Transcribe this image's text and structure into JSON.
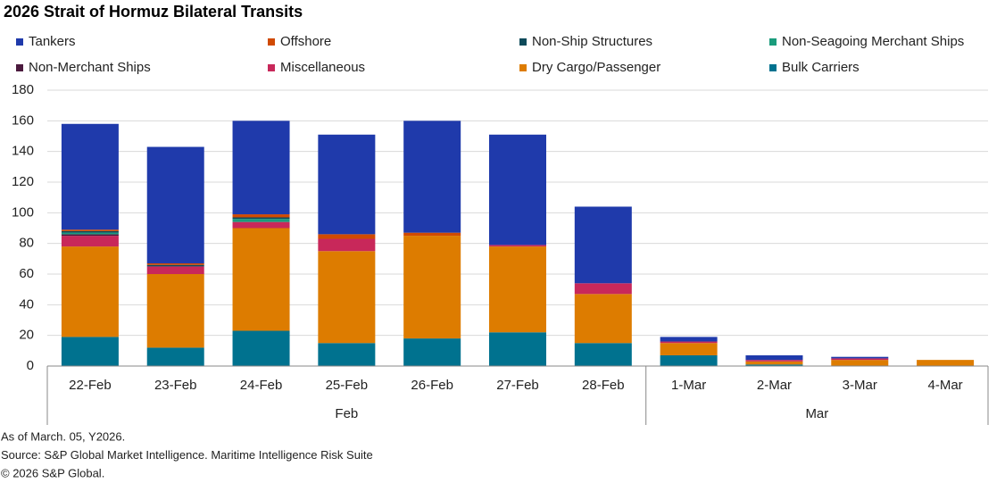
{
  "chart_data": {
    "type": "stacked-bar",
    "title": "2026 Strait of Hormuz Bilateral Transits",
    "categories": [
      "22-Feb",
      "23-Feb",
      "24-Feb",
      "25-Feb",
      "26-Feb",
      "27-Feb",
      "28-Feb",
      "1-Mar",
      "2-Mar",
      "3-Mar",
      "4-Mar"
    ],
    "groups": [
      {
        "label": "Feb",
        "count": 7
      },
      {
        "label": "Mar",
        "count": 4
      }
    ],
    "series": [
      {
        "name": "Tankers",
        "color": "#1f3aab",
        "values": [
          69,
          76,
          61,
          65,
          73,
          72,
          50,
          3,
          3,
          1,
          0
        ]
      },
      {
        "name": "Offshore",
        "color": "#d04a02",
        "values": [
          1,
          1,
          2,
          3,
          2,
          0,
          0,
          0,
          0,
          0,
          0
        ]
      },
      {
        "name": "Non-Ship Structures",
        "color": "#0d4a5a",
        "values": [
          1,
          1,
          1,
          0,
          0,
          0,
          0,
          0,
          0,
          0,
          0
        ]
      },
      {
        "name": "Non-Seagoing Merchant Ships",
        "color": "#1a9c7c",
        "values": [
          1,
          0,
          2,
          0,
          0,
          0,
          0,
          0,
          0,
          0,
          0
        ]
      },
      {
        "name": "Non-Merchant Ships",
        "color": "#4b1a3e",
        "values": [
          1,
          0,
          0,
          0,
          0,
          0,
          0,
          0,
          0,
          0,
          0
        ]
      },
      {
        "name": "Miscellaneous",
        "color": "#c8285a",
        "values": [
          7,
          5,
          4,
          8,
          0,
          1,
          7,
          1,
          1,
          1,
          0
        ]
      },
      {
        "name": "Dry Cargo/Passenger",
        "color": "#dd7c00",
        "values": [
          59,
          48,
          67,
          60,
          67,
          56,
          32,
          8,
          2,
          4,
          4
        ]
      },
      {
        "name": "Bulk Carriers",
        "color": "#00728f",
        "values": [
          19,
          12,
          23,
          15,
          18,
          22,
          15,
          7,
          1,
          0,
          0
        ]
      }
    ],
    "ylim": [
      0,
      180
    ],
    "yticks": [
      0,
      20,
      40,
      60,
      80,
      100,
      120,
      140,
      160,
      180
    ],
    "grid": true,
    "notes": [
      "As of March. 05, Y2026.",
      "Source: S&P Global Market Intelligence. Maritime Intelligence Risk Suite",
      "© 2026 S&P Global."
    ]
  }
}
